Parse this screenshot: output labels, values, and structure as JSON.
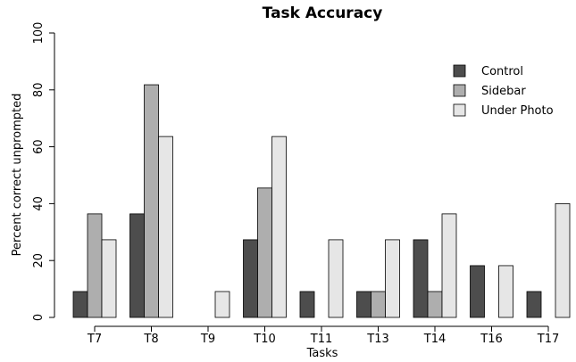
{
  "chart_data": {
    "type": "bar",
    "title": "Task Accuracy",
    "xlabel": "Tasks",
    "ylabel": "Percent correct unprompted",
    "ylim": [
      0,
      100
    ],
    "yticks": [
      0,
      20,
      40,
      60,
      80,
      100
    ],
    "categories": [
      "T7",
      "T8",
      "T9",
      "T10",
      "T11",
      "T13",
      "T14",
      "T16",
      "T17"
    ],
    "series": [
      {
        "name": "Control",
        "color": "#4d4d4d",
        "values": [
          9.1,
          36.4,
          0,
          27.3,
          9.1,
          9.1,
          27.3,
          18.2,
          9.1
        ]
      },
      {
        "name": "Sidebar",
        "color": "#aeaeae",
        "values": [
          36.4,
          81.8,
          0,
          45.5,
          0,
          9.1,
          9.1,
          0,
          0
        ]
      },
      {
        "name": "Under Photo",
        "color": "#e6e6e6",
        "values": [
          27.3,
          63.6,
          9.1,
          63.6,
          27.3,
          27.3,
          36.4,
          18.2,
          40
        ]
      }
    ],
    "legend_position": "top-right",
    "grid": false
  }
}
